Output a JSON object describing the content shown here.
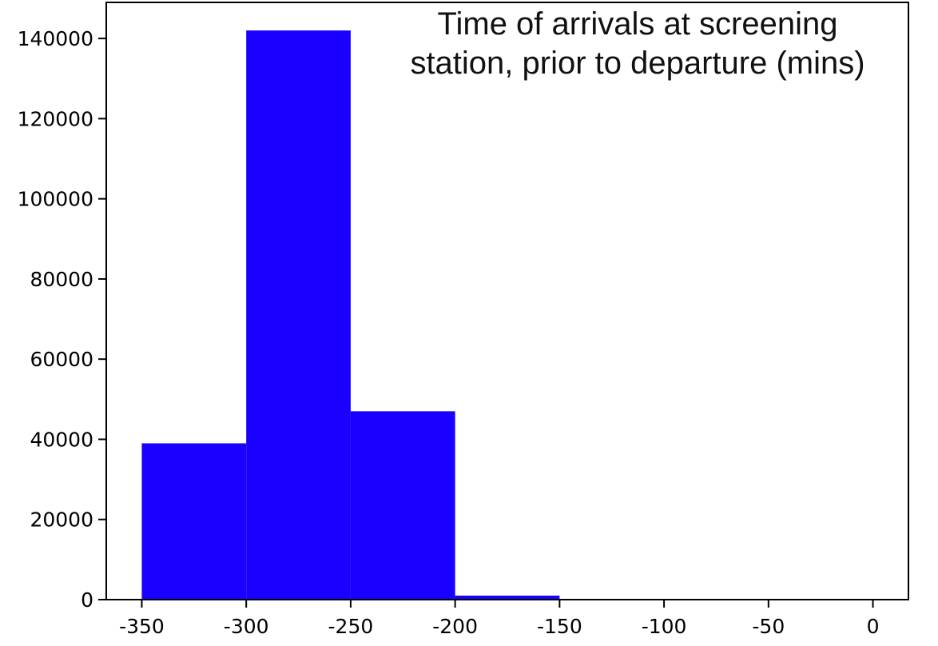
{
  "chart_data": {
    "type": "bar",
    "title_lines": [
      "Time of arrivals at screening",
      "station, prior to departure (mins)"
    ],
    "xlabel": "",
    "ylabel": "",
    "bins": [
      {
        "x0": -350,
        "x1": -300,
        "value": 39000
      },
      {
        "x0": -300,
        "x1": -250,
        "value": 142000
      },
      {
        "x0": -250,
        "x1": -200,
        "value": 47000
      },
      {
        "x0": -200,
        "x1": -150,
        "value": 1000
      },
      {
        "x0": -150,
        "x1": -100,
        "value": 0
      },
      {
        "x0": -100,
        "x1": -50,
        "value": 0
      },
      {
        "x0": -50,
        "x1": 0,
        "value": 0
      }
    ],
    "xlim": [
      -367,
      17
    ],
    "ylim": [
      0,
      149000
    ],
    "x_ticks": [
      -350,
      -300,
      -250,
      -200,
      -150,
      -100,
      -50,
      0
    ],
    "x_tick_labels": [
      "-350",
      "-300",
      "-250",
      "-200",
      "-150",
      "-100",
      "-50",
      "0"
    ],
    "y_ticks": [
      0,
      20000,
      40000,
      60000,
      80000,
      100000,
      120000,
      140000
    ],
    "y_tick_labels": [
      "0",
      "20000",
      "40000",
      "60000",
      "80000",
      "100000",
      "120000",
      "140000"
    ],
    "bar_color": "#1a00ff",
    "grid": false,
    "legend": "none"
  }
}
